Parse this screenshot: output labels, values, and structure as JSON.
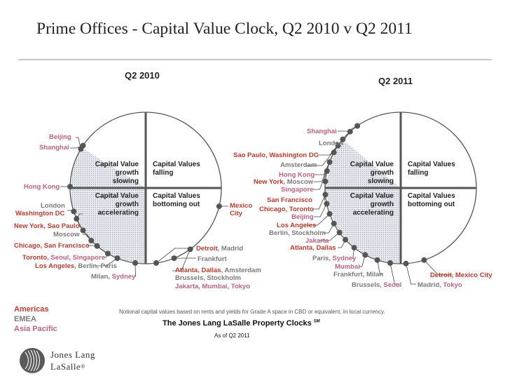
{
  "title": "Prime Offices - Capital Value Clock, Q2 2010 v Q2 2011",
  "colors": {
    "americas": "#c0392b",
    "emea": "#7a7a7a",
    "asia_pacific": "#c06080"
  },
  "left_clock": {
    "heading": "Q2 2010",
    "q1": [
      "Capital Value",
      "growth slowing"
    ],
    "q2": [
      "Capital Values",
      "falling"
    ],
    "q3": [
      "Capital Value",
      "growth",
      "accelerating"
    ],
    "q4": [
      "Capital Values",
      "bottoming out"
    ]
  },
  "right_clock": {
    "heading": "Q2 2011",
    "q1": [
      "Capital Value",
      "growth slowing"
    ],
    "q2": [
      "Capital Values",
      "falling"
    ],
    "q3": [
      "Capital Value",
      "growth",
      "accelerating"
    ],
    "q4": [
      "Capital Values",
      "bottoming out"
    ]
  },
  "left_labels": {
    "beijing": "Beijing",
    "shanghai": "Shanghai",
    "hong_kong": "Hong Kong",
    "london": "London",
    "washington": "Washington DC",
    "ny_sp": "New York, Sao Paulo",
    "moscow": "Moscow",
    "chi_sf": "Chicago, San Francisco",
    "toronto": "Toronto",
    "seoul_sg": "Seoul, Singapore",
    "la": "Los Angeles",
    "berlin_paris": ", Berlin, Paris",
    "milan": "Milan",
    "sydney": "Sydney",
    "detroit": "Detroit",
    "madrid": ", Madrid",
    "frankfurt": "Frankfurt",
    "atl_dal": "Atlanta, Dallas",
    "amsterdam": ", Amsterdam",
    "brussels_stockholm": "Brussels, Stockholm",
    "jakarta_mumbai_tokyo": "Jakarta, Mumbai, Tokyo",
    "mexico": "Mexico",
    "city": "City"
  },
  "right_labels": {
    "shanghai": "Shanghai",
    "london": "London",
    "sp_dc": "Sao Paulo, Washington DC",
    "amsterdam": "Amsterdam",
    "hong_kong": "Hong Kong",
    "new_york": "New York",
    "moscow": ", Moscow",
    "singapore": "Singapore",
    "sf": "San Francisco",
    "toronto": "Chicago, Toronto",
    "beijing": "Beijing",
    "la": "Los Angeles",
    "berlin_stockholm": "Berlin, Stockholm",
    "jakarta": "Jakarta",
    "atl_dal": "Atlanta, Dallas",
    "paris": "Paris",
    "sydney": ", Sydney",
    "mumbai": "Mumbai",
    "frankfurt_milan": "Frankfurt, Milan",
    "brussels": "Brussels",
    "seoul": ", Seoul",
    "madrid": "Madrid",
    "tokyo": ", Tokyo",
    "detroit_mexico": "Detroit, Mexico City"
  },
  "legend": {
    "americas": "Americas",
    "emea": "EMEA",
    "asia_pacific": "Asia Pacific"
  },
  "footnote": "Notional capital values based on rents and yields for Grade A space in CBD or equivalent.  In local currency.",
  "clocks_title": "The Jones Lang LaSalle Property Clocks",
  "clocks_title_mark": "SM",
  "as_of": "As of Q2 2011",
  "logo": {
    "line1": "Jones Lang",
    "line2": "LaSalle",
    "mark": "®"
  }
}
